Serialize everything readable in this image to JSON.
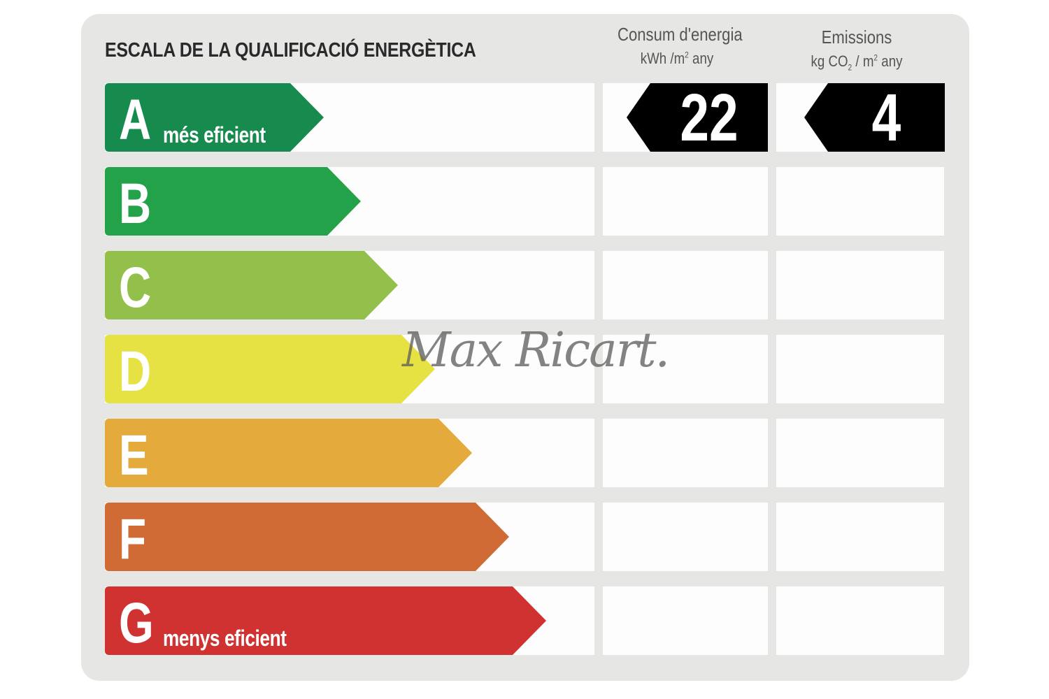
{
  "title": "ESCALA DE LA QUALIFICACIÓ ENERGÈTICA",
  "columns": {
    "consumption": {
      "heading": "Consum d'energia",
      "unit_pre": "kWh /m",
      "unit_sup": "2",
      "unit_post": " any"
    },
    "emissions": {
      "heading": "Emissions",
      "unit_pre": "kg CO",
      "unit_sub": "2",
      "unit_mid": " / m",
      "unit_sup": "2",
      "unit_post": " any"
    }
  },
  "scale": [
    {
      "letter": "A",
      "label": "més eficient",
      "color": "#178a4e"
    },
    {
      "letter": "B",
      "label": "",
      "color": "#23a24a"
    },
    {
      "letter": "C",
      "label": "",
      "color": "#92c04a"
    },
    {
      "letter": "D",
      "label": "",
      "color": "#e6e244"
    },
    {
      "letter": "E",
      "label": "",
      "color": "#e5aa3c"
    },
    {
      "letter": "F",
      "label": "",
      "color": "#d16b36"
    },
    {
      "letter": "G",
      "label": "menys eficient",
      "color": "#d03232"
    }
  ],
  "rating": {
    "class": "A",
    "consumption_value": "22",
    "emissions_value": "4",
    "marker_color": "#000000"
  },
  "watermark": "Max Ricart."
}
